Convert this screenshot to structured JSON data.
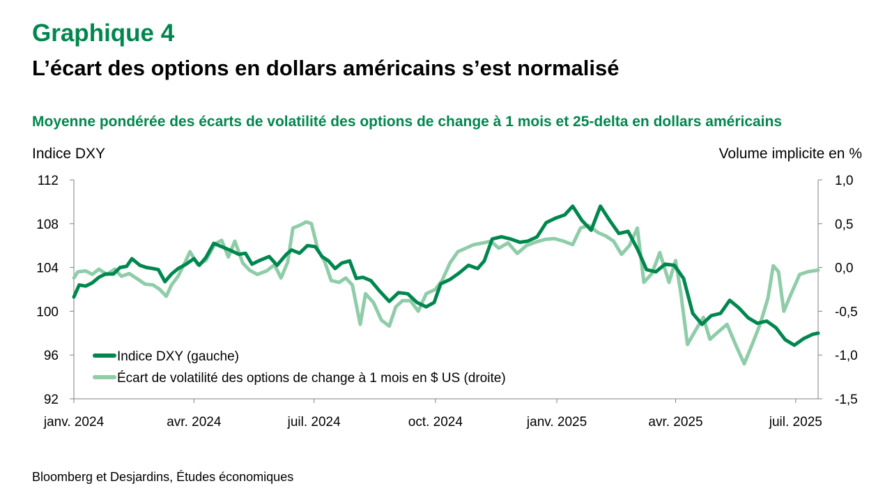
{
  "header": {
    "graph_number": "Graphique 4",
    "title": "L’écart des options en dollars américains s’est normalisé",
    "subtitle": "Moyenne pondérée des écarts de volatilité des options de change à 1 mois et 25-delta en dollars américains"
  },
  "source": "Bloomberg et Desjardins, Études économiques",
  "colors": {
    "brand": "#00874e",
    "series_dark": "#00874e",
    "series_light": "#8fcca8"
  },
  "chart_data": {
    "type": "line",
    "title": "Moyenne pondérée des écarts de volatilité des options de change à 1 mois et 25-delta en dollars américains",
    "y_left_label": "Indice DXY",
    "y_right_label": "Volume implicite en %",
    "y_left_range": [
      92,
      112
    ],
    "y_left_ticks": [
      "112",
      "108",
      "104",
      "100",
      "96",
      "92"
    ],
    "y_right_range": [
      -1.5,
      1.0
    ],
    "y_right_ticks": [
      "1,0",
      "0,5",
      "0,0",
      "-0,5",
      "-1,0",
      "-1,5"
    ],
    "x_range": [
      "2024-01-01",
      "2025-07-18"
    ],
    "x_ticks": [
      {
        "date": "2024-01-01",
        "label": "janv. 2024"
      },
      {
        "date": "2024-04-01",
        "label": "avr. 2024"
      },
      {
        "date": "2024-07-01",
        "label": "juil. 2024"
      },
      {
        "date": "2024-10-01",
        "label": "oct. 2024"
      },
      {
        "date": "2025-01-01",
        "label": "janv. 2025"
      },
      {
        "date": "2025-04-01",
        "label": "avr. 2025"
      },
      {
        "date": "2025-07-01",
        "label": "juil. 2025"
      }
    ],
    "grid": false,
    "legend_position": "bottom-left",
    "series": [
      {
        "name": "Indice DXY (gauche)",
        "axis": "left",
        "color": "#00874e",
        "points": [
          [
            "2024-01-01",
            101.3
          ],
          [
            "2024-01-05",
            102.4
          ],
          [
            "2024-01-10",
            102.3
          ],
          [
            "2024-01-15",
            102.6
          ],
          [
            "2024-01-20",
            103.1
          ],
          [
            "2024-01-25",
            103.4
          ],
          [
            "2024-01-31",
            103.4
          ],
          [
            "2024-02-05",
            104.0
          ],
          [
            "2024-02-10",
            104.1
          ],
          [
            "2024-02-14",
            104.8
          ],
          [
            "2024-02-20",
            104.2
          ],
          [
            "2024-02-25",
            104.0
          ],
          [
            "2024-03-01",
            103.9
          ],
          [
            "2024-03-05",
            103.8
          ],
          [
            "2024-03-10",
            102.7
          ],
          [
            "2024-03-15",
            103.4
          ],
          [
            "2024-03-20",
            103.9
          ],
          [
            "2024-03-26",
            104.3
          ],
          [
            "2024-04-01",
            104.8
          ],
          [
            "2024-04-05",
            104.2
          ],
          [
            "2024-04-10",
            104.9
          ],
          [
            "2024-04-16",
            106.2
          ],
          [
            "2024-04-22",
            105.9
          ],
          [
            "2024-04-28",
            105.6
          ],
          [
            "2024-05-05",
            105.2
          ],
          [
            "2024-05-10",
            105.3
          ],
          [
            "2024-05-15",
            104.3
          ],
          [
            "2024-05-20",
            104.6
          ],
          [
            "2024-05-28",
            105.0
          ],
          [
            "2024-06-03",
            104.2
          ],
          [
            "2024-06-10",
            105.2
          ],
          [
            "2024-06-14",
            105.6
          ],
          [
            "2024-06-20",
            105.3
          ],
          [
            "2024-06-26",
            106.0
          ],
          [
            "2024-07-02",
            105.9
          ],
          [
            "2024-07-07",
            105.0
          ],
          [
            "2024-07-12",
            104.6
          ],
          [
            "2024-07-17",
            103.9
          ],
          [
            "2024-07-22",
            104.4
          ],
          [
            "2024-07-28",
            104.6
          ],
          [
            "2024-08-02",
            103.0
          ],
          [
            "2024-08-07",
            103.1
          ],
          [
            "2024-08-13",
            102.8
          ],
          [
            "2024-08-20",
            101.8
          ],
          [
            "2024-08-27",
            100.9
          ],
          [
            "2024-09-03",
            101.7
          ],
          [
            "2024-09-10",
            101.6
          ],
          [
            "2024-09-17",
            100.8
          ],
          [
            "2024-09-24",
            100.4
          ],
          [
            "2024-09-30",
            100.8
          ],
          [
            "2024-10-05",
            102.5
          ],
          [
            "2024-10-12",
            102.9
          ],
          [
            "2024-10-19",
            103.5
          ],
          [
            "2024-10-26",
            104.2
          ],
          [
            "2024-11-02",
            103.9
          ],
          [
            "2024-11-07",
            104.6
          ],
          [
            "2024-11-13",
            106.6
          ],
          [
            "2024-11-20",
            106.8
          ],
          [
            "2024-11-27",
            106.6
          ],
          [
            "2024-12-04",
            106.3
          ],
          [
            "2024-12-10",
            106.4
          ],
          [
            "2024-12-17",
            106.8
          ],
          [
            "2024-12-24",
            108.1
          ],
          [
            "2024-12-31",
            108.5
          ],
          [
            "2025-01-07",
            108.8
          ],
          [
            "2025-01-13",
            109.6
          ],
          [
            "2025-01-20",
            108.3
          ],
          [
            "2025-01-27",
            107.4
          ],
          [
            "2025-02-03",
            109.6
          ],
          [
            "2025-02-10",
            108.3
          ],
          [
            "2025-02-17",
            107.1
          ],
          [
            "2025-02-24",
            107.3
          ],
          [
            "2025-03-03",
            105.7
          ],
          [
            "2025-03-10",
            103.8
          ],
          [
            "2025-03-17",
            103.6
          ],
          [
            "2025-03-24",
            104.3
          ],
          [
            "2025-03-31",
            104.2
          ],
          [
            "2025-04-07",
            103.0
          ],
          [
            "2025-04-14",
            99.8
          ],
          [
            "2025-04-21",
            98.8
          ],
          [
            "2025-04-28",
            99.6
          ],
          [
            "2025-05-05",
            99.8
          ],
          [
            "2025-05-12",
            101.0
          ],
          [
            "2025-05-19",
            100.3
          ],
          [
            "2025-05-26",
            99.4
          ],
          [
            "2025-06-02",
            98.9
          ],
          [
            "2025-06-09",
            99.1
          ],
          [
            "2025-06-16",
            98.5
          ],
          [
            "2025-06-23",
            97.4
          ],
          [
            "2025-06-30",
            96.9
          ],
          [
            "2025-07-07",
            97.5
          ],
          [
            "2025-07-14",
            97.9
          ],
          [
            "2025-07-18",
            98.0
          ]
        ]
      },
      {
        "name": "Écart de volatilité des options de change à 1 mois en $ US (droite)",
        "axis": "right",
        "color": "#8fcca8",
        "points": [
          [
            "2024-01-01",
            -0.12
          ],
          [
            "2024-01-04",
            -0.05
          ],
          [
            "2024-01-10",
            -0.04
          ],
          [
            "2024-01-15",
            -0.08
          ],
          [
            "2024-01-20",
            -0.02
          ],
          [
            "2024-01-26",
            -0.08
          ],
          [
            "2024-02-01",
            -0.02
          ],
          [
            "2024-02-06",
            -0.1
          ],
          [
            "2024-02-12",
            -0.07
          ],
          [
            "2024-02-18",
            -0.13
          ],
          [
            "2024-02-24",
            -0.19
          ],
          [
            "2024-03-01",
            -0.2
          ],
          [
            "2024-03-06",
            -0.25
          ],
          [
            "2024-03-11",
            -0.33
          ],
          [
            "2024-03-15",
            -0.2
          ],
          [
            "2024-03-20",
            -0.1
          ],
          [
            "2024-03-25",
            0.05
          ],
          [
            "2024-03-29",
            0.18
          ],
          [
            "2024-04-04",
            0.03
          ],
          [
            "2024-04-10",
            0.08
          ],
          [
            "2024-04-17",
            0.27
          ],
          [
            "2024-04-22",
            0.31
          ],
          [
            "2024-04-27",
            0.12
          ],
          [
            "2024-05-02",
            0.3
          ],
          [
            "2024-05-08",
            0.05
          ],
          [
            "2024-05-13",
            -0.03
          ],
          [
            "2024-05-19",
            -0.08
          ],
          [
            "2024-05-26",
            -0.04
          ],
          [
            "2024-06-01",
            0.03
          ],
          [
            "2024-06-06",
            -0.12
          ],
          [
            "2024-06-11",
            0.06
          ],
          [
            "2024-06-15",
            0.45
          ],
          [
            "2024-06-20",
            0.48
          ],
          [
            "2024-06-25",
            0.52
          ],
          [
            "2024-06-29",
            0.5
          ],
          [
            "2024-07-04",
            0.2
          ],
          [
            "2024-07-09",
            0.07
          ],
          [
            "2024-07-14",
            -0.15
          ],
          [
            "2024-07-20",
            -0.17
          ],
          [
            "2024-07-25",
            -0.12
          ],
          [
            "2024-07-30",
            -0.2
          ],
          [
            "2024-08-05",
            -0.65
          ],
          [
            "2024-08-09",
            -0.3
          ],
          [
            "2024-08-15",
            -0.4
          ],
          [
            "2024-08-21",
            -0.6
          ],
          [
            "2024-08-27",
            -0.67
          ],
          [
            "2024-09-01",
            -0.45
          ],
          [
            "2024-09-06",
            -0.38
          ],
          [
            "2024-09-12",
            -0.38
          ],
          [
            "2024-09-18",
            -0.5
          ],
          [
            "2024-09-24",
            -0.3
          ],
          [
            "2024-10-01",
            -0.25
          ],
          [
            "2024-10-06",
            -0.15
          ],
          [
            "2024-10-12",
            0.05
          ],
          [
            "2024-10-18",
            0.18
          ],
          [
            "2024-10-24",
            0.22
          ],
          [
            "2024-10-30",
            0.26
          ],
          [
            "2024-11-06",
            0.28
          ],
          [
            "2024-11-12",
            0.3
          ],
          [
            "2024-11-18",
            0.22
          ],
          [
            "2024-11-25",
            0.28
          ],
          [
            "2024-12-02",
            0.16
          ],
          [
            "2024-12-09",
            0.25
          ],
          [
            "2024-12-16",
            0.29
          ],
          [
            "2024-12-23",
            0.32
          ],
          [
            "2024-12-30",
            0.33
          ],
          [
            "2025-01-06",
            0.3
          ],
          [
            "2025-01-13",
            0.26
          ],
          [
            "2025-01-19",
            0.45
          ],
          [
            "2025-01-25",
            0.48
          ],
          [
            "2025-02-01",
            0.4
          ],
          [
            "2025-02-07",
            0.36
          ],
          [
            "2025-02-13",
            0.3
          ],
          [
            "2025-02-19",
            0.15
          ],
          [
            "2025-02-25",
            0.25
          ],
          [
            "2025-03-03",
            0.45
          ],
          [
            "2025-03-08",
            -0.17
          ],
          [
            "2025-03-14",
            -0.07
          ],
          [
            "2025-03-20",
            0.17
          ],
          [
            "2025-03-27",
            -0.17
          ],
          [
            "2025-04-01",
            0.08
          ],
          [
            "2025-04-05",
            -0.3
          ],
          [
            "2025-04-10",
            -0.88
          ],
          [
            "2025-04-16",
            -0.72
          ],
          [
            "2025-04-22",
            -0.57
          ],
          [
            "2025-04-27",
            -0.82
          ],
          [
            "2025-05-03",
            -0.74
          ],
          [
            "2025-05-10",
            -0.65
          ],
          [
            "2025-05-17",
            -0.9
          ],
          [
            "2025-05-23",
            -1.1
          ],
          [
            "2025-05-29",
            -0.88
          ],
          [
            "2025-06-04",
            -0.65
          ],
          [
            "2025-06-10",
            -0.35
          ],
          [
            "2025-06-14",
            0.02
          ],
          [
            "2025-06-18",
            -0.05
          ],
          [
            "2025-06-22",
            -0.5
          ],
          [
            "2025-06-27",
            -0.32
          ],
          [
            "2025-07-04",
            -0.08
          ],
          [
            "2025-07-10",
            -0.05
          ],
          [
            "2025-07-14",
            -0.04
          ],
          [
            "2025-07-18",
            -0.03
          ]
        ]
      }
    ]
  }
}
